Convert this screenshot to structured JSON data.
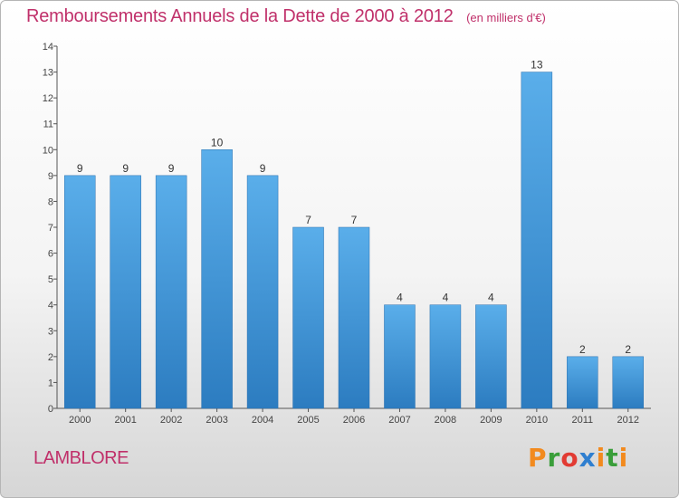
{
  "chart_data": {
    "type": "bar",
    "title": "Remboursements Annuels de la Dette de 2000 à 2012",
    "subtitle": "(en milliers d'€)",
    "categories": [
      "2000",
      "2001",
      "2002",
      "2003",
      "2004",
      "2005",
      "2006",
      "2007",
      "2008",
      "2009",
      "2010",
      "2011",
      "2012"
    ],
    "values": [
      9,
      9,
      9,
      10,
      9,
      7,
      7,
      4,
      4,
      4,
      13,
      2,
      2
    ],
    "ylim": [
      0,
      14
    ],
    "yticks": [
      0,
      1,
      2,
      3,
      4,
      5,
      6,
      7,
      8,
      9,
      10,
      11,
      12,
      13,
      14
    ],
    "grid": false,
    "bar_color": "#4a9de0"
  },
  "footer": {
    "commune": "LAMBLORE",
    "logo_letters": [
      "P",
      "r",
      "o",
      "x",
      "i",
      "t",
      "i"
    ]
  }
}
